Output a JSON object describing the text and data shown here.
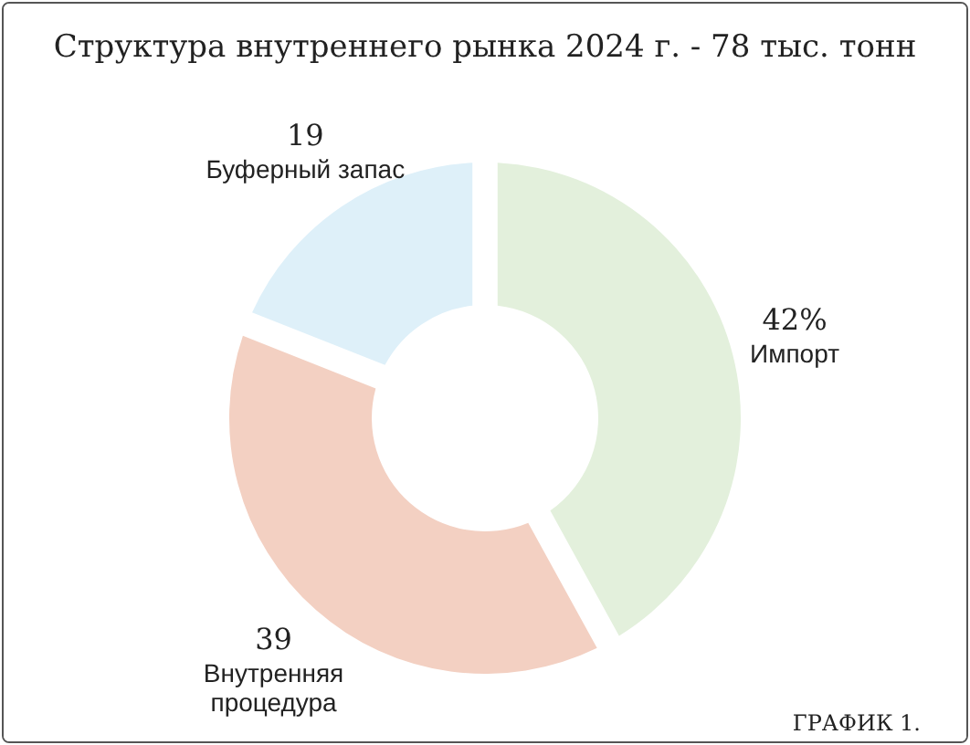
{
  "chart_data": {
    "type": "donut",
    "title": "Структура внутреннего рынка 2024 г. - 78 тыс. тонн",
    "categories": [
      "Импорт",
      "Внутренняя процедура",
      "Буферный запас"
    ],
    "values": [
      42,
      39,
      19
    ],
    "value_labels": [
      "42%",
      "39",
      "19"
    ],
    "colors": [
      "#e3f0dc",
      "#f3d0c2",
      "#def0f9"
    ],
    "annotations": [
      "ГРАФИК 1."
    ]
  }
}
